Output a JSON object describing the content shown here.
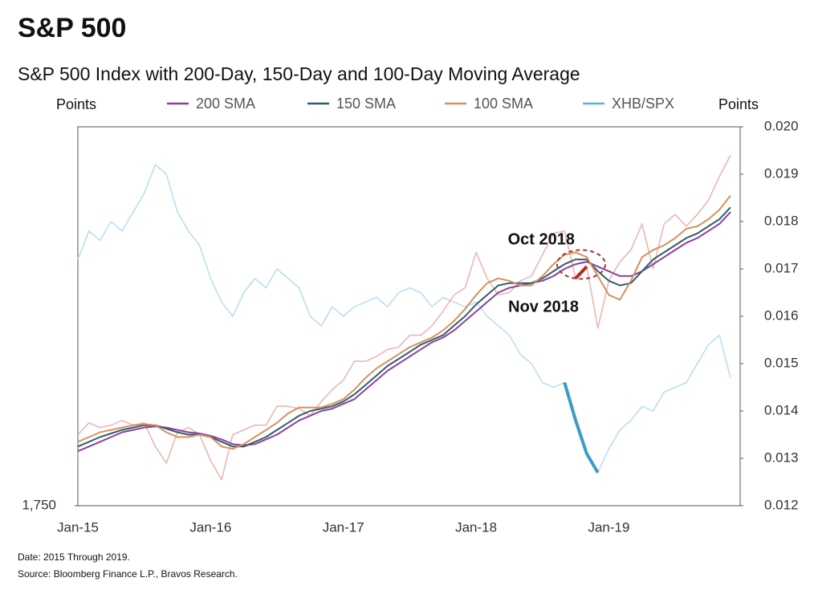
{
  "chart_data": {
    "type": "line",
    "title": "S&P 500",
    "subtitle": "S&P 500 Index with 200-Day, 150-Day and 100-Day Moving Average",
    "y_label": "Points",
    "y2_label": "Points",
    "footnotes": [
      "Date: 2015 Through 2019.",
      "Source: Bloomberg Finance L.P., Bravos Research."
    ],
    "annotations": [
      "Oct 2018",
      "Nov 2018"
    ],
    "x": [
      "Jan-15",
      "Feb-15",
      "Mar-15",
      "Apr-15",
      "May-15",
      "Jun-15",
      "Jul-15",
      "Aug-15",
      "Sep-15",
      "Oct-15",
      "Nov-15",
      "Dec-15",
      "Jan-16",
      "Feb-16",
      "Mar-16",
      "Apr-16",
      "May-16",
      "Jun-16",
      "Jul-16",
      "Aug-16",
      "Sep-16",
      "Oct-16",
      "Nov-16",
      "Dec-16",
      "Jan-17",
      "Feb-17",
      "Mar-17",
      "Apr-17",
      "May-17",
      "Jun-17",
      "Jul-17",
      "Aug-17",
      "Sep-17",
      "Oct-17",
      "Nov-17",
      "Dec-17",
      "Jan-18",
      "Feb-18",
      "Mar-18",
      "Apr-18",
      "May-18",
      "Jun-18",
      "Jul-18",
      "Aug-18",
      "Sep-18",
      "Oct-18",
      "Nov-18",
      "Dec-18",
      "Jan-19",
      "Feb-19",
      "Mar-19",
      "Apr-19",
      "May-19",
      "Jun-19",
      "Jul-19",
      "Aug-19",
      "Sep-19",
      "Oct-19",
      "Nov-19",
      "Dec-19"
    ],
    "xticks": [
      "Jan-15",
      "Jan-16",
      "Jan-17",
      "Jan-18",
      "Jan-19"
    ],
    "ylim": [
      1750,
      3350
    ],
    "yticks": [
      {
        "value": 1750,
        "label": "1,750"
      }
    ],
    "y2lim": [
      0.012,
      0.02
    ],
    "y2ticks": [
      0.012,
      0.013,
      0.014,
      0.015,
      0.016,
      0.017,
      0.018,
      0.019,
      {
        "value": 0.02,
        "label": "0.020"
      }
    ],
    "series": [
      {
        "color": "#e9b8b3",
        "highlight": [
          "Oct-18",
          "Nov-18"
        ],
        "highlight_color": "#b52a20",
        "values": [
          2050,
          2100,
          2080,
          2090,
          2110,
          2090,
          2100,
          2000,
          1930,
          2060,
          2080,
          2050,
          1940,
          1860,
          2050,
          2070,
          2090,
          2090,
          2170,
          2170,
          2160,
          2130,
          2190,
          2240,
          2280,
          2360,
          2360,
          2380,
          2410,
          2420,
          2470,
          2470,
          2510,
          2570,
          2640,
          2670,
          2820,
          2710,
          2640,
          2650,
          2700,
          2720,
          2810,
          2900,
          2910,
          2710,
          2760,
          2500,
          2700,
          2780,
          2830,
          2940,
          2750,
          2940,
          2980,
          2930,
          2980,
          3040,
          3140,
          3230
        ]
      },
      {
        "name": "200 SMA",
        "color": "#8e3f9e",
        "values": [
          1980,
          2000,
          2020,
          2040,
          2060,
          2070,
          2080,
          2085,
          2080,
          2070,
          2060,
          2055,
          2045,
          2030,
          2010,
          2005,
          2010,
          2030,
          2050,
          2080,
          2110,
          2130,
          2150,
          2160,
          2180,
          2200,
          2240,
          2280,
          2320,
          2350,
          2380,
          2410,
          2440,
          2460,
          2490,
          2530,
          2570,
          2610,
          2650,
          2670,
          2680,
          2690,
          2700,
          2720,
          2750,
          2770,
          2780,
          2760,
          2740,
          2720,
          2720,
          2740,
          2770,
          2800,
          2830,
          2860,
          2880,
          2910,
          2940,
          2990
        ]
      },
      {
        "name": "150 SMA",
        "color": "#2f5e6c",
        "values": [
          2000,
          2020,
          2040,
          2055,
          2070,
          2080,
          2090,
          2090,
          2075,
          2060,
          2050,
          2050,
          2040,
          2020,
          2000,
          2000,
          2020,
          2040,
          2070,
          2100,
          2130,
          2150,
          2160,
          2170,
          2190,
          2220,
          2260,
          2300,
          2340,
          2370,
          2400,
          2430,
          2450,
          2470,
          2510,
          2550,
          2600,
          2640,
          2680,
          2690,
          2690,
          2690,
          2710,
          2740,
          2770,
          2790,
          2790,
          2740,
          2700,
          2680,
          2690,
          2740,
          2790,
          2820,
          2850,
          2880,
          2900,
          2930,
          2960,
          3010
        ]
      },
      {
        "name": "100 SMA",
        "color": "#d8905e",
        "values": [
          2020,
          2040,
          2060,
          2070,
          2080,
          2090,
          2095,
          2090,
          2060,
          2040,
          2040,
          2050,
          2040,
          2000,
          1990,
          2010,
          2040,
          2070,
          2100,
          2140,
          2165,
          2165,
          2165,
          2180,
          2200,
          2240,
          2290,
          2330,
          2360,
          2390,
          2420,
          2440,
          2460,
          2490,
          2530,
          2580,
          2640,
          2690,
          2710,
          2700,
          2680,
          2680,
          2720,
          2770,
          2810,
          2820,
          2800,
          2720,
          2640,
          2620,
          2700,
          2800,
          2830,
          2850,
          2880,
          2920,
          2930,
          2960,
          3000,
          3060
        ]
      },
      {
        "name": "XHB/SPX",
        "color": "#bcdeee",
        "axis": "y2",
        "highlight": [
          "Sep-18",
          "Dec-18"
        ],
        "highlight_color": "#3b9bc6",
        "values": [
          0.0172,
          0.0178,
          0.0176,
          0.018,
          0.0178,
          0.0182,
          0.0186,
          0.0192,
          0.019,
          0.0182,
          0.0178,
          0.0175,
          0.0168,
          0.0163,
          0.016,
          0.0165,
          0.0168,
          0.0166,
          0.017,
          0.0168,
          0.0166,
          0.016,
          0.0158,
          0.0162,
          0.016,
          0.0162,
          0.0163,
          0.0164,
          0.0162,
          0.0165,
          0.0166,
          0.0165,
          0.0162,
          0.0164,
          0.0163,
          0.0162,
          0.0163,
          0.016,
          0.0158,
          0.0156,
          0.0152,
          0.015,
          0.0146,
          0.0145,
          0.0146,
          0.0138,
          0.0131,
          0.0127,
          0.0132,
          0.0136,
          0.0138,
          0.0141,
          0.014,
          0.0144,
          0.0145,
          0.0146,
          0.015,
          0.0154,
          0.0156,
          0.0147
        ]
      }
    ]
  }
}
